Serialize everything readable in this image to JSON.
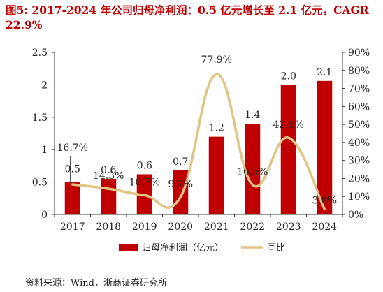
{
  "title": "图5:   2017-2024 年公司归母净利润：0.5 亿元增长至 2.1 亿元，CAGR 22.9%",
  "source": "资料来源：Wind，浙商证券研究所",
  "chart_data": {
    "type": "bar+line",
    "categories": [
      "2017",
      "2018",
      "2019",
      "2020",
      "2021",
      "2022",
      "2023",
      "2024"
    ],
    "series": [
      {
        "name": "归母净利润（亿元）",
        "type": "bar",
        "axis": "left",
        "color": "#c00000",
        "values": [
          0.5,
          0.55,
          0.62,
          0.68,
          1.2,
          1.4,
          2.0,
          2.06
        ],
        "labels": [
          "0.5",
          "0.6",
          "0.6",
          "0.7",
          "1.2",
          "1.4",
          "2.0",
          "2.1"
        ]
      },
      {
        "name": "同比",
        "type": "line",
        "axis": "right",
        "color": "#e0c584",
        "values": [
          16.7,
          14.3,
          10.7,
          9.7,
          77.9,
          16.5,
          42.6,
          3.0
        ],
        "labels": [
          "16.7%",
          "14.3%",
          "10.7%",
          "9.7%",
          "77.9%",
          "16.5%",
          "42.6%",
          "3.0%"
        ]
      }
    ],
    "y_left": {
      "min": 0,
      "max": 2.5,
      "ticks": [
        "0",
        "0.5",
        "1",
        "1.5",
        "2",
        "2.5"
      ]
    },
    "y_right": {
      "min": 0,
      "max": 90,
      "ticks": [
        "0%",
        "10%",
        "20%",
        "30%",
        "40%",
        "50%",
        "60%",
        "70%",
        "80%",
        "90%"
      ]
    },
    "grid": false,
    "legend_position": "bottom"
  }
}
